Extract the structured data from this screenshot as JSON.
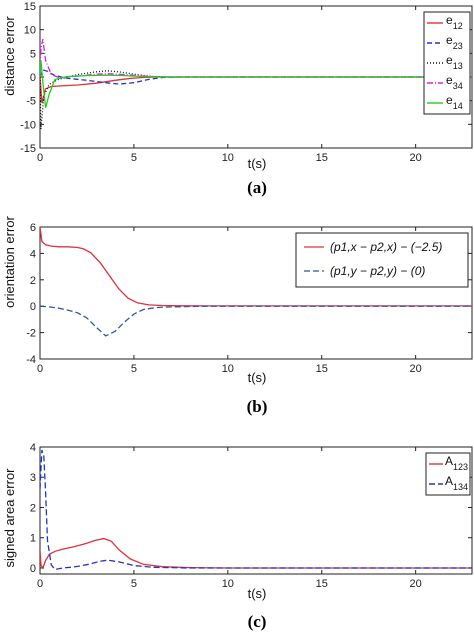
{
  "chart_data": [
    {
      "type": "line",
      "panel_label": "(a)",
      "xlabel": "t(s)",
      "ylabel": "distance error",
      "xlim": [
        0,
        23
      ],
      "ylim": [
        -15,
        15
      ],
      "xticks": [
        0,
        5,
        10,
        15,
        20
      ],
      "yticks": [
        -15,
        -10,
        -5,
        0,
        5,
        10,
        15
      ],
      "legend_position": "top-right",
      "series": [
        {
          "name": "e12",
          "legend_main": "e",
          "legend_sub": "12",
          "color": "#e0303a",
          "dash": "",
          "x": [
            0,
            0.1,
            0.3,
            0.6,
            1,
            1.5,
            2,
            3,
            4,
            4.8,
            5.5,
            6.2,
            7,
            23
          ],
          "y": [
            0.3,
            -5.5,
            -2.5,
            -2,
            -1.9,
            -1.8,
            -1.7,
            -1.3,
            -0.7,
            -0.3,
            -0.1,
            0,
            0,
            0
          ]
        },
        {
          "name": "e23",
          "legend_main": "e",
          "legend_sub": "23",
          "color": "#2233cc",
          "dash": "5 3",
          "x": [
            0,
            0.15,
            0.4,
            0.8,
            1.5,
            2.5,
            3.5,
            4.2,
            5,
            5.8,
            6.5,
            7.2,
            23
          ],
          "y": [
            0,
            1.5,
            1.2,
            0.3,
            -0.3,
            -0.7,
            -1.2,
            -1.5,
            -1.2,
            -0.5,
            -0.1,
            0,
            0
          ]
        },
        {
          "name": "e13",
          "legend_main": "e",
          "legend_sub": "13",
          "color": "#111111",
          "dash": "1 2",
          "x": [
            0,
            0.05,
            0.2,
            0.5,
            1,
            2,
            3,
            3.6,
            4.2,
            5,
            6,
            7,
            23
          ],
          "y": [
            0,
            -11,
            -4,
            -1.5,
            -0.5,
            0.5,
            1.1,
            1.3,
            1.1,
            0.6,
            0.1,
            0,
            0
          ]
        },
        {
          "name": "e34",
          "legend_main": "e",
          "legend_sub": "34",
          "color": "#dd22dd",
          "dash": "6 2 1 2",
          "x": [
            0,
            0.05,
            0.15,
            0.3,
            0.6,
            1,
            2,
            3,
            3.6,
            4.5,
            5.5,
            6.5,
            23
          ],
          "y": [
            0,
            6,
            8,
            3.5,
            0.5,
            -0.1,
            0.2,
            0.6,
            0.7,
            0.5,
            0.2,
            0,
            0
          ]
        },
        {
          "name": "e14",
          "legend_main": "e",
          "legend_sub": "14",
          "color": "#22cc22",
          "dash": "",
          "x": [
            0,
            0.05,
            0.15,
            0.3,
            0.5,
            0.8,
            1.5,
            2.5,
            3.5,
            4.5,
            5.5,
            6.5,
            23
          ],
          "y": [
            0,
            3.5,
            -1,
            -6.5,
            -3.5,
            -0.5,
            0.1,
            0.3,
            0.4,
            0.3,
            0.1,
            0,
            0
          ]
        }
      ]
    },
    {
      "type": "line",
      "panel_label": "(b)",
      "xlabel": "t(s)",
      "ylabel": "orientation error",
      "xlim": [
        0,
        23
      ],
      "ylim": [
        -4,
        6
      ],
      "xticks": [
        0,
        5,
        10,
        15,
        20
      ],
      "yticks": [
        -4,
        -2,
        0,
        2,
        4,
        6
      ],
      "legend_position": "top-right",
      "series": [
        {
          "name": "(p1,x − p2,x) − (−2.5)",
          "color": "#e0303a",
          "dash": "",
          "x": [
            0,
            0.1,
            0.3,
            0.6,
            1,
            1.5,
            2,
            2.3,
            2.7,
            3.2,
            3.7,
            4.2,
            4.7,
            5.2,
            5.8,
            6.5,
            7.5,
            9,
            23
          ],
          "y": [
            6,
            4.9,
            4.65,
            4.55,
            4.5,
            4.5,
            4.45,
            4.35,
            4.05,
            3.3,
            2.3,
            1.3,
            0.6,
            0.25,
            0.1,
            0.05,
            0.03,
            0.02,
            0.02
          ]
        },
        {
          "name": "(p1,y − p2,y) − (0)",
          "color": "#33559e",
          "dash": "6 3",
          "x": [
            0,
            0.5,
            1,
            1.5,
            2,
            2.5,
            3,
            3.5,
            4,
            4.5,
            5,
            5.5,
            6.2,
            7,
            8,
            9,
            23
          ],
          "y": [
            0,
            -0.05,
            -0.15,
            -0.3,
            -0.5,
            -0.9,
            -1.6,
            -2.25,
            -1.9,
            -1.2,
            -0.6,
            -0.25,
            -0.1,
            -0.05,
            -0.02,
            0,
            0
          ]
        }
      ]
    },
    {
      "type": "line",
      "panel_label": "(c)",
      "xlabel": "t(s)",
      "ylabel": "signed area error",
      "xlim": [
        0,
        23
      ],
      "ylim": [
        -0.2,
        4
      ],
      "xticks": [
        0,
        5,
        10,
        15,
        20
      ],
      "yticks": [
        0,
        1,
        2,
        3,
        4
      ],
      "legend_position": "top-right",
      "series": [
        {
          "name": "A123",
          "legend_main": "A",
          "legend_sub": "123",
          "color": "#e0303a",
          "dash": "",
          "x": [
            0,
            0.05,
            0.15,
            0.3,
            0.5,
            0.8,
            1.2,
            1.8,
            2.4,
            3,
            3.4,
            3.8,
            4.2,
            4.8,
            5.5,
            6.5,
            8,
            10,
            23
          ],
          "y": [
            0.6,
            0.1,
            0.0,
            0.25,
            0.45,
            0.55,
            0.62,
            0.7,
            0.8,
            0.92,
            0.97,
            0.88,
            0.6,
            0.3,
            0.12,
            0.04,
            0.01,
            0,
            0
          ]
        },
        {
          "name": "A134",
          "legend_main": "A",
          "legend_sub": "134",
          "color": "#2233cc",
          "dash": "6 3",
          "x": [
            0,
            0.1,
            0.2,
            0.3,
            0.4,
            0.6,
            0.8,
            1.2,
            1.6,
            2,
            2.6,
            3.2,
            3.6,
            4.2,
            5,
            6,
            8,
            23
          ],
          "y": [
            2.6,
            3.9,
            3.7,
            2.5,
            0.9,
            0.1,
            -0.05,
            0.0,
            0.02,
            0.05,
            0.12,
            0.22,
            0.26,
            0.2,
            0.08,
            0.02,
            0,
            0
          ]
        }
      ]
    }
  ]
}
